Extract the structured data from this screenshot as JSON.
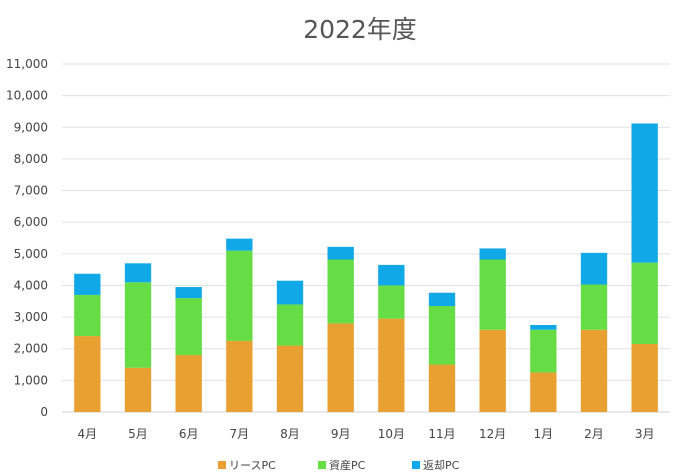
{
  "chart_data": {
    "type": "bar",
    "stacked": true,
    "title": "2022年度",
    "xlabel": "",
    "ylabel": "",
    "categories": [
      "4月",
      "5月",
      "6月",
      "7月",
      "8月",
      "9月",
      "10月",
      "11月",
      "12月",
      "1月",
      "2月",
      "3月"
    ],
    "ylim": [
      0,
      11000
    ],
    "yticks": [
      0,
      1000,
      2000,
      3000,
      4000,
      5000,
      6000,
      7000,
      8000,
      9000,
      10000,
      11000
    ],
    "ytick_labels": [
      "0",
      "1,000",
      "2,000",
      "3,000",
      "4,000",
      "5,000",
      "6,000",
      "7,000",
      "8,000",
      "9,000",
      "10,000",
      "11,000"
    ],
    "grid": true,
    "legend_position": "bottom",
    "series": [
      {
        "name": "リースPC",
        "color": "#e8a030",
        "values": [
          2400,
          1400,
          1800,
          2250,
          2100,
          2800,
          2950,
          1500,
          2600,
          1250,
          2600,
          2150
        ]
      },
      {
        "name": "資産PC",
        "color": "#66dd44",
        "values": [
          1300,
          2700,
          1800,
          2850,
          1300,
          2020,
          1050,
          1850,
          2220,
          1350,
          1430,
          2570
        ]
      },
      {
        "name": "返却PC",
        "color": "#11a8e8",
        "values": [
          670,
          600,
          350,
          380,
          750,
          400,
          650,
          420,
          350,
          150,
          1000,
          4400
        ]
      }
    ]
  }
}
